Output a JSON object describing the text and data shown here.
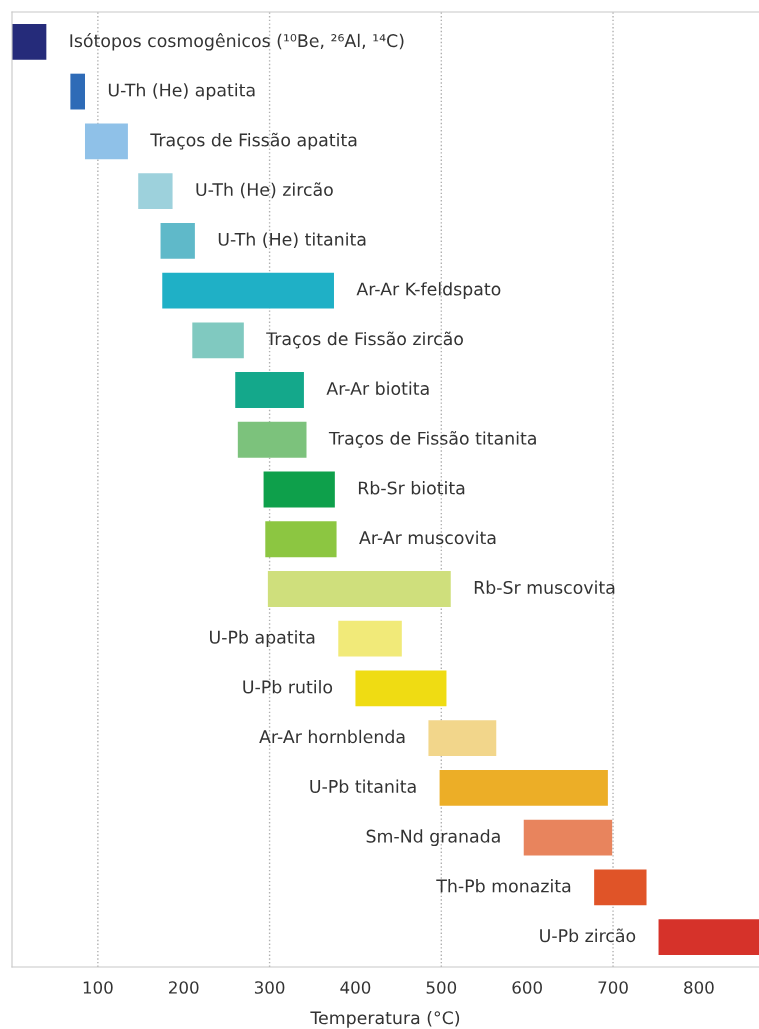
{
  "chart_data": {
    "type": "bar",
    "orientation": "horizontal",
    "xlabel": "Temperatura (°C)",
    "categories": [
      "Isótopos cosmogênicos (¹⁰Be, ²⁶Al, ¹⁴C)",
      "U-Th (He) apatita",
      "Traços de Fissão apatita",
      "U-Th (He) zircão",
      "U-Th (He) titanita",
      "Ar-Ar K-feldspato",
      "Traços de Fissão zircão",
      "Ar-Ar biotita",
      "Traços de Fissão titanita",
      "Rb-Sr biotita",
      "Ar-Ar muscovita",
      "Rb-Sr muscovita",
      "U-Pb apatita",
      "U-Pb rutilo",
      "Ar-Ar hornblenda",
      "U-Pb titanita",
      "Sm-Nd granada",
      "Th-Pb monazita",
      "U-Pb zircão"
    ],
    "base": [
      0,
      68,
      85,
      147,
      173,
      175,
      210,
      260,
      263,
      293,
      295,
      298,
      380,
      400,
      485,
      498,
      596,
      678,
      753
    ],
    "values": [
      40,
      17,
      50,
      40,
      40,
      200,
      60,
      80,
      80,
      83,
      83,
      213,
      74,
      106,
      79,
      196,
      103,
      61,
      117
    ],
    "colors": [
      "#252b7a",
      "#2e6bb7",
      "#8fc1e8",
      "#9dd1dc",
      "#5fb9c9",
      "#1fb0c6",
      "#80c9c0",
      "#14a88b",
      "#7cc27c",
      "#0ea04b",
      "#8cc641",
      "#cfdf7c",
      "#f1ea79",
      "#efdc13",
      "#f2d68b",
      "#ecae27",
      "#e8845d",
      "#e05428",
      "#d6322a"
    ],
    "xlim": [
      0,
      870
    ],
    "xticks": [
      100,
      200,
      300,
      400,
      500,
      600,
      700,
      800
    ],
    "ref_lines": [
      {
        "axis": "x",
        "value": 100,
        "color": "#b0b0b0",
        "line_style": "dotted"
      },
      {
        "axis": "x",
        "value": 300,
        "color": "#b0b0b0",
        "line_style": "dotted"
      },
      {
        "axis": "x",
        "value": 500,
        "color": "#b0b0b0",
        "line_style": "dotted"
      },
      {
        "axis": "x",
        "value": 700,
        "color": "#b0b0b0",
        "line_style": "dotted"
      }
    ],
    "tick_labels": "x"
  }
}
